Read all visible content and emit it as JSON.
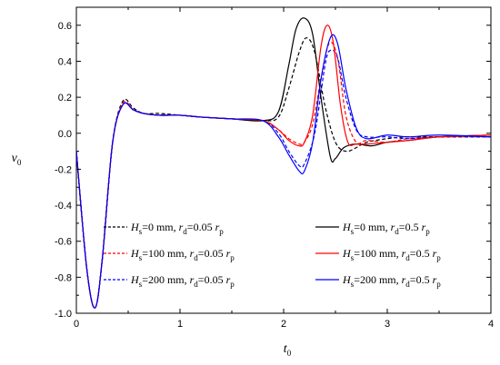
{
  "chart_data": {
    "type": "line",
    "xlabel": {
      "main": "t",
      "sub": "0"
    },
    "ylabel": {
      "main": "v",
      "sub": "0"
    },
    "xlim": [
      0,
      4
    ],
    "ylim": [
      -1.0,
      0.7
    ],
    "xticks": [
      0,
      1,
      2,
      3,
      4
    ],
    "xtick_labels": [
      "0",
      "1",
      "2",
      "3",
      "4"
    ],
    "yticks": [
      -1.0,
      -0.8,
      -0.6,
      -0.4,
      -0.2,
      0.0,
      0.2,
      0.4,
      0.6
    ],
    "ytick_labels": [
      "-1.0",
      "-0.8",
      "-0.6",
      "-0.4",
      "-0.2",
      "0.0",
      "0.2",
      "0.4",
      "0.6"
    ],
    "grid": false,
    "legend_placement": "bottom",
    "series": [
      {
        "name": "Hs=0 mm, rd=0.05 rp",
        "legend": [
          {
            "t": "H",
            "i": true
          },
          {
            "t": "s",
            "sub": true
          },
          {
            "t": "=0 mm,    "
          },
          {
            "t": "r",
            "i": true
          },
          {
            "t": "d",
            "sub": true
          },
          {
            "t": "=0.05 "
          },
          {
            "t": "r",
            "i": true
          },
          {
            "t": "p",
            "sub": true
          }
        ],
        "color": "#000000",
        "dash": "dashed",
        "x": [
          0,
          0.1,
          0.18,
          0.25,
          0.35,
          0.45,
          0.55,
          0.65,
          0.8,
          1.0,
          1.2,
          1.5,
          1.8,
          1.95,
          2.05,
          2.15,
          2.22,
          2.3,
          2.4,
          2.5,
          2.6,
          2.7,
          2.8,
          3.0,
          3.2,
          3.5,
          4.0
        ],
        "y": [
          -0.1,
          -0.75,
          -0.97,
          -0.7,
          -0.05,
          0.18,
          0.14,
          0.11,
          0.11,
          0.1,
          0.09,
          0.08,
          0.07,
          0.09,
          0.25,
          0.45,
          0.53,
          0.45,
          0.15,
          -0.05,
          -0.1,
          -0.08,
          -0.05,
          -0.03,
          -0.02,
          -0.02,
          -0.02
        ]
      },
      {
        "name": "Hs=100 mm, rd=0.05 rp",
        "legend": [
          {
            "t": "H",
            "i": true
          },
          {
            "t": "s",
            "sub": true
          },
          {
            "t": "=100 mm, "
          },
          {
            "t": "r",
            "i": true
          },
          {
            "t": "d",
            "sub": true
          },
          {
            "t": "=0.05 "
          },
          {
            "t": "r",
            "i": true
          },
          {
            "t": "p",
            "sub": true
          }
        ],
        "color": "#ff0000",
        "dash": "dashed",
        "x": [
          0,
          0.1,
          0.18,
          0.25,
          0.35,
          0.45,
          0.55,
          0.65,
          0.8,
          1.0,
          1.2,
          1.5,
          1.8,
          1.95,
          2.05,
          2.15,
          2.2,
          2.28,
          2.36,
          2.44,
          2.52,
          2.6,
          2.7,
          2.8,
          3.0,
          3.2,
          3.5,
          4.0
        ],
        "y": [
          -0.1,
          -0.75,
          -0.97,
          -0.7,
          -0.05,
          0.17,
          0.13,
          0.11,
          0.1,
          0.1,
          0.09,
          0.08,
          0.07,
          0.02,
          -0.03,
          -0.06,
          -0.05,
          0.05,
          0.3,
          0.5,
          0.42,
          0.1,
          -0.05,
          -0.04,
          -0.05,
          -0.03,
          -0.02,
          -0.02
        ]
      },
      {
        "name": "Hs=200 mm, rd=0.05 rp",
        "legend": [
          {
            "t": "H",
            "i": true
          },
          {
            "t": "s",
            "sub": true
          },
          {
            "t": "=200 mm, "
          },
          {
            "t": "r",
            "i": true
          },
          {
            "t": "d",
            "sub": true
          },
          {
            "t": "=0.05 "
          },
          {
            "t": "r",
            "i": true
          },
          {
            "t": "p",
            "sub": true
          }
        ],
        "color": "#0000ff",
        "dash": "dashed",
        "x": [
          0,
          0.1,
          0.18,
          0.25,
          0.35,
          0.45,
          0.55,
          0.65,
          0.8,
          1.0,
          1.2,
          1.5,
          1.8,
          1.95,
          2.05,
          2.15,
          2.2,
          2.3,
          2.4,
          2.45,
          2.52,
          2.6,
          2.7,
          2.8,
          3.0,
          3.2,
          3.5,
          4.0
        ],
        "y": [
          -0.1,
          -0.75,
          -0.97,
          -0.7,
          -0.05,
          0.16,
          0.13,
          0.11,
          0.1,
          0.1,
          0.09,
          0.08,
          0.07,
          0.0,
          -0.1,
          -0.18,
          -0.17,
          0.0,
          0.38,
          0.46,
          0.42,
          0.2,
          0.02,
          -0.02,
          -0.02,
          -0.03,
          -0.02,
          -0.02
        ]
      },
      {
        "name": "Hs=0 mm, rd=0.5 rp",
        "legend": [
          {
            "t": "H",
            "i": true
          },
          {
            "t": "s",
            "sub": true
          },
          {
            "t": "=0 mm,    "
          },
          {
            "t": "r",
            "i": true
          },
          {
            "t": "d",
            "sub": true
          },
          {
            "t": "=0.5 "
          },
          {
            "t": "r",
            "i": true
          },
          {
            "t": "p",
            "sub": true
          }
        ],
        "color": "#000000",
        "dash": "solid",
        "x": [
          0,
          0.1,
          0.18,
          0.25,
          0.35,
          0.45,
          0.55,
          0.65,
          0.8,
          1.0,
          1.2,
          1.5,
          1.8,
          1.95,
          2.05,
          2.12,
          2.2,
          2.28,
          2.36,
          2.45,
          2.5,
          2.58,
          2.7,
          2.85,
          3.0,
          3.2,
          3.5,
          4.0
        ],
        "y": [
          -0.1,
          -0.75,
          -0.97,
          -0.7,
          -0.05,
          0.16,
          0.13,
          0.11,
          0.1,
          0.1,
          0.09,
          0.08,
          0.07,
          0.12,
          0.38,
          0.58,
          0.64,
          0.55,
          0.2,
          -0.13,
          -0.14,
          -0.08,
          -0.06,
          -0.07,
          -0.05,
          -0.04,
          -0.02,
          -0.01
        ]
      },
      {
        "name": "Hs=100 mm, rd=0.5 rp",
        "legend": [
          {
            "t": "H",
            "i": true
          },
          {
            "t": "s",
            "sub": true
          },
          {
            "t": "=100 mm, "
          },
          {
            "t": "r",
            "i": true
          },
          {
            "t": "d",
            "sub": true
          },
          {
            "t": "=0.5 "
          },
          {
            "t": "r",
            "i": true
          },
          {
            "t": "p",
            "sub": true
          }
        ],
        "color": "#ff0000",
        "dash": "solid",
        "x": [
          0,
          0.1,
          0.18,
          0.25,
          0.35,
          0.45,
          0.55,
          0.65,
          0.8,
          1.0,
          1.2,
          1.5,
          1.8,
          1.95,
          2.05,
          2.15,
          2.2,
          2.28,
          2.36,
          2.42,
          2.48,
          2.55,
          2.62,
          2.7,
          2.8,
          3.0,
          3.2,
          3.5,
          4.0
        ],
        "y": [
          -0.1,
          -0.75,
          -0.97,
          -0.7,
          -0.05,
          0.16,
          0.13,
          0.11,
          0.1,
          0.1,
          0.09,
          0.08,
          0.07,
          0.02,
          -0.04,
          -0.07,
          -0.05,
          0.1,
          0.48,
          0.6,
          0.5,
          0.15,
          -0.05,
          -0.06,
          -0.06,
          -0.05,
          -0.04,
          -0.02,
          -0.01
        ]
      },
      {
        "name": "Hs=200 mm, rd=0.5 rp",
        "legend": [
          {
            "t": "H",
            "i": true
          },
          {
            "t": "s",
            "sub": true
          },
          {
            "t": "=200 mm, "
          },
          {
            "t": "r",
            "i": true
          },
          {
            "t": "d",
            "sub": true
          },
          {
            "t": "=0.5 "
          },
          {
            "t": "r",
            "i": true
          },
          {
            "t": "p",
            "sub": true
          }
        ],
        "color": "#0000ff",
        "dash": "solid",
        "x": [
          0,
          0.1,
          0.18,
          0.25,
          0.35,
          0.45,
          0.55,
          0.65,
          0.8,
          1.0,
          1.2,
          1.5,
          1.8,
          1.95,
          2.05,
          2.15,
          2.2,
          2.28,
          2.36,
          2.45,
          2.52,
          2.6,
          2.7,
          2.8,
          3.0,
          3.2,
          3.5,
          4.0
        ],
        "y": [
          -0.1,
          -0.75,
          -0.97,
          -0.7,
          -0.05,
          0.16,
          0.13,
          0.11,
          0.1,
          0.1,
          0.09,
          0.08,
          0.07,
          -0.02,
          -0.12,
          -0.21,
          -0.21,
          -0.05,
          0.3,
          0.53,
          0.5,
          0.25,
          0.03,
          -0.03,
          -0.01,
          -0.02,
          -0.01,
          -0.02
        ]
      }
    ]
  }
}
